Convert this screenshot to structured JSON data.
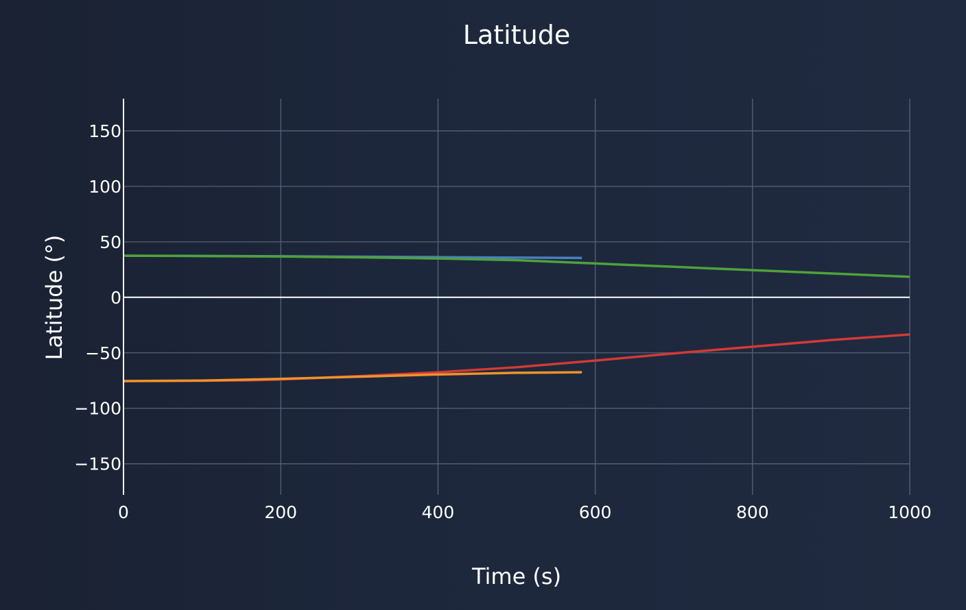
{
  "chart_data": {
    "type": "line",
    "title": "Latitude",
    "xlabel": "Time (s)",
    "ylabel": "Latitude (°)",
    "xlim": [
      0,
      1000
    ],
    "ylim": [
      -178,
      179
    ],
    "x_ticks": [
      0,
      200,
      400,
      600,
      800,
      1000
    ],
    "x_tick_labels": [
      "0",
      "200",
      "400",
      "600",
      "800",
      "1000"
    ],
    "y_ticks": [
      150,
      100,
      50,
      0,
      -50,
      -100,
      -150
    ],
    "y_tick_labels": [
      "150",
      "100",
      "50",
      "0",
      "−50",
      "−100",
      "−150"
    ],
    "grid": true,
    "legend": "none",
    "series": [
      {
        "color": "#4a7fc1",
        "x": [
          0,
          100,
          200,
          300,
          400,
          500,
          583
        ],
        "y": [
          37.5,
          37.3,
          37.0,
          36.6,
          36.2,
          35.8,
          35.5
        ]
      },
      {
        "color": "#4ea23a",
        "x": [
          0,
          100,
          200,
          300,
          400,
          500,
          600,
          700,
          800,
          900,
          1000
        ],
        "y": [
          37.5,
          37.2,
          36.8,
          36.0,
          35.0,
          33.5,
          30.5,
          27.5,
          24.5,
          21.5,
          18.5
        ]
      },
      {
        "color": "#d03b36",
        "x": [
          0,
          100,
          160,
          200,
          300,
          400,
          500,
          600,
          700,
          800,
          900,
          1000
        ],
        "y": [
          -75.5,
          -75.2,
          -74.8,
          -74.0,
          -71.0,
          -67.5,
          -63.0,
          -57.0,
          -50.5,
          -44.5,
          -38.5,
          -33.5
        ]
      },
      {
        "color": "#f0932b",
        "x": [
          0,
          100,
          200,
          300,
          400,
          500,
          583
        ],
        "y": [
          -75.5,
          -75.0,
          -73.5,
          -71.5,
          -69.5,
          -68.0,
          -67.5
        ]
      }
    ]
  }
}
